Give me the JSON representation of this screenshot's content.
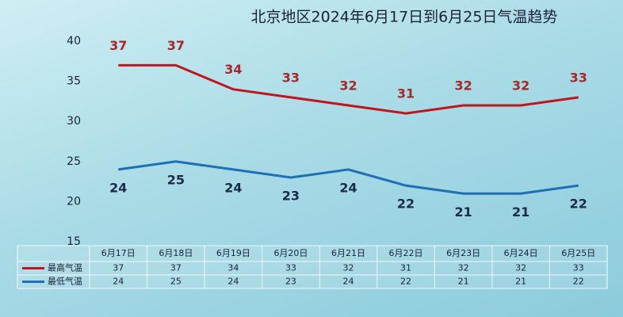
{
  "chart_data": {
    "type": "line",
    "title": "北京地区2024年6月17日到6月25日气温趋势",
    "categories": [
      "6月17日",
      "6月18日",
      "6月19日",
      "6月20日",
      "6月21日",
      "6月22日",
      "6月23日",
      "6月24日",
      "6月25日"
    ],
    "series": [
      {
        "name": "最高气温",
        "color": "#c0141e",
        "label_color": "#a8282a",
        "values": [
          37,
          37,
          34,
          33,
          32,
          31,
          32,
          32,
          33
        ]
      },
      {
        "name": "最低气温",
        "color": "#1f6fb5",
        "label_color": "#1b2b48",
        "values": [
          24,
          25,
          24,
          23,
          24,
          22,
          21,
          21,
          22
        ]
      }
    ],
    "ylim": [
      15,
      40
    ],
    "yticks": [
      15,
      20,
      25,
      30,
      35,
      40
    ],
    "grid": false
  }
}
